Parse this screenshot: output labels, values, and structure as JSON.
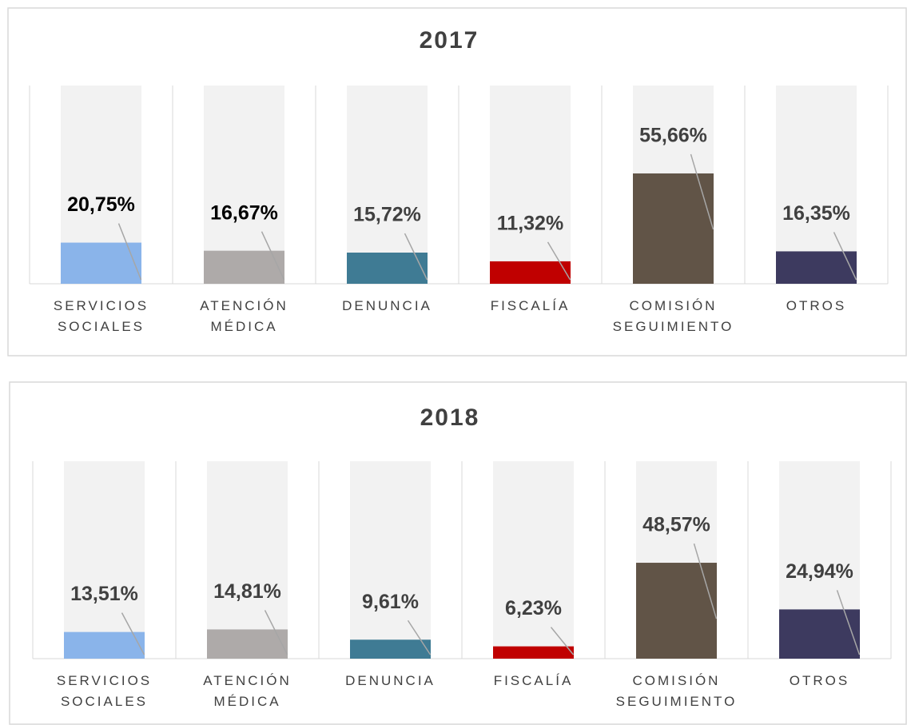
{
  "chart_data": [
    {
      "type": "bar",
      "title": "2017",
      "categories": [
        "SERVICIOS SOCIALES",
        "ATENCIÓN MÉDICA",
        "DENUNCIA",
        "FISCALÍA",
        "COMISIÓN SEGUIMIENTO",
        "OTROS"
      ],
      "values": [
        20.75,
        16.67,
        15.72,
        11.32,
        55.66,
        16.35
      ],
      "value_labels": [
        "20,75%",
        "16,67%",
        "15,72%",
        "11,32%",
        "55,66%",
        "16,35%"
      ],
      "value_label_colors": [
        "#000000",
        "#000000",
        "#404040",
        "#404040",
        "#404040",
        "#404040"
      ],
      "colors": [
        "#8ab4ea",
        "#aeaaa9",
        "#3f7b94",
        "#c00000",
        "#615447",
        "#3d3a5f"
      ],
      "background_color": "#f2f2f2",
      "ylim": [
        0,
        100
      ]
    },
    {
      "type": "bar",
      "title": "2018",
      "categories": [
        "SERVICIOS SOCIALES",
        "ATENCIÓN MÉDICA",
        "DENUNCIA",
        "FISCALÍA",
        "COMISIÓN SEGUIMIENTO",
        "OTROS"
      ],
      "values": [
        13.51,
        14.81,
        9.61,
        6.23,
        48.57,
        24.94
      ],
      "value_labels": [
        "13,51%",
        "14,81%",
        "9,61%",
        "6,23%",
        "48,57%",
        "24,94%"
      ],
      "value_label_colors": [
        "#404040",
        "#404040",
        "#404040",
        "#404040",
        "#404040",
        "#404040"
      ],
      "colors": [
        "#8ab4ea",
        "#aeaaa9",
        "#3f7b94",
        "#c00000",
        "#615447",
        "#3d3a5f"
      ],
      "background_color": "#f2f2f2",
      "ylim": [
        0,
        100
      ]
    }
  ]
}
